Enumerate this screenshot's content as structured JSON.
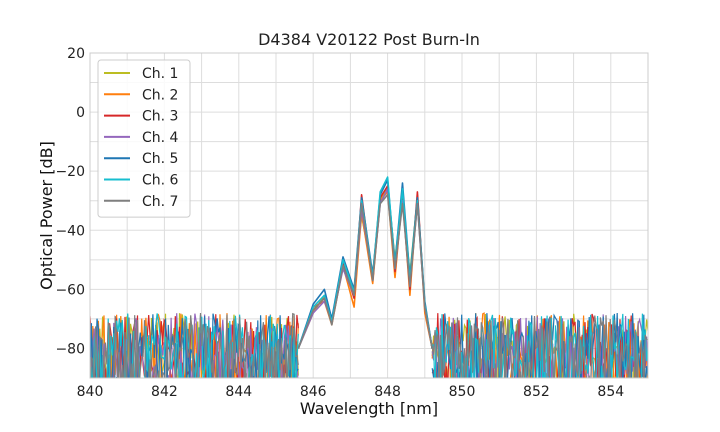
{
  "chart_data": {
    "type": "line",
    "title": "D4384 V20122 Post Burn-In",
    "xlabel": "Wavelength [nm]",
    "ylabel": "Optical Power [dB]",
    "xlim": [
      840,
      855
    ],
    "ylim": [
      -90,
      20
    ],
    "xticks": [
      840,
      842,
      844,
      846,
      848,
      850,
      852,
      854
    ],
    "yticks": [
      20,
      0,
      -20,
      -40,
      -60,
      -80
    ],
    "grid": true,
    "legend_position": "top-left",
    "noise_floor_db": -80,
    "series": [
      {
        "name": "Ch. 1",
        "color": "#bcbd22",
        "x": [
          845.6,
          846.0,
          846.3,
          846.5,
          846.8,
          847.1,
          847.3,
          847.6,
          847.8,
          848.0,
          848.2,
          848.4,
          848.6,
          848.8,
          849.0,
          849.2
        ],
        "y": [
          -80,
          -68,
          -62,
          -70,
          -52,
          -60,
          -35,
          -55,
          -30,
          -25,
          -50,
          -28,
          -55,
          -29,
          -65,
          -80
        ]
      },
      {
        "name": "Ch. 2",
        "color": "#ff7f0e",
        "x": [
          845.6,
          846.0,
          846.3,
          846.5,
          846.8,
          847.1,
          847.3,
          847.6,
          847.8,
          848.0,
          848.2,
          848.4,
          848.6,
          848.8,
          849.0,
          849.2
        ],
        "y": [
          -80,
          -66,
          -64,
          -72,
          -52,
          -66,
          -34,
          -58,
          -30,
          -27,
          -56,
          -28,
          -62,
          -28,
          -68,
          -80
        ]
      },
      {
        "name": "Ch. 3",
        "color": "#d62728",
        "x": [
          845.6,
          846.0,
          846.3,
          846.5,
          846.8,
          847.1,
          847.3,
          847.6,
          847.8,
          848.0,
          848.2,
          848.4,
          848.6,
          848.8,
          849.0,
          849.2
        ],
        "y": [
          -80,
          -67,
          -63,
          -71,
          -51,
          -63,
          -28,
          -57,
          -29,
          -25,
          -54,
          -29,
          -60,
          -27,
          -66,
          -80
        ]
      },
      {
        "name": "Ch. 4",
        "color": "#9467bd",
        "x": [
          845.6,
          846.0,
          846.3,
          846.5,
          846.8,
          847.1,
          847.3,
          847.6,
          847.8,
          848.0,
          848.2,
          848.4,
          848.6,
          848.8,
          849.0,
          849.2
        ],
        "y": [
          -80,
          -68,
          -64,
          -71,
          -53,
          -62,
          -33,
          -56,
          -31,
          -26,
          -53,
          -30,
          -58,
          -31,
          -66,
          -80
        ]
      },
      {
        "name": "Ch. 5",
        "color": "#1f77b4",
        "x": [
          845.6,
          846.0,
          846.3,
          846.5,
          846.8,
          847.1,
          847.3,
          847.6,
          847.8,
          848.0,
          848.2,
          848.4,
          848.6,
          848.8,
          849.0,
          849.2
        ],
        "y": [
          -80,
          -65,
          -60,
          -70,
          -49,
          -60,
          -29,
          -55,
          -28,
          -23,
          -51,
          -24,
          -56,
          -29,
          -64,
          -80
        ]
      },
      {
        "name": "Ch. 6",
        "color": "#17becf",
        "x": [
          845.6,
          846.0,
          846.3,
          846.5,
          846.8,
          847.1,
          847.3,
          847.6,
          847.8,
          848.0,
          848.2,
          848.4,
          848.6,
          848.8,
          849.0,
          849.2
        ],
        "y": [
          -80,
          -66,
          -62,
          -71,
          -50,
          -61,
          -30,
          -56,
          -27,
          -22,
          -52,
          -26,
          -57,
          -30,
          -65,
          -80
        ]
      },
      {
        "name": "Ch. 7",
        "color": "#7f7f7f",
        "x": [
          845.6,
          846.0,
          846.3,
          846.5,
          846.8,
          847.1,
          847.3,
          847.6,
          847.8,
          848.0,
          848.2,
          848.4,
          848.6,
          848.8,
          849.0,
          849.2
        ],
        "y": [
          -80,
          -67,
          -63,
          -72,
          -52,
          -62,
          -31,
          -57,
          -31,
          -28,
          -53,
          -31,
          -59,
          -31,
          -66,
          -80
        ]
      }
    ]
  }
}
